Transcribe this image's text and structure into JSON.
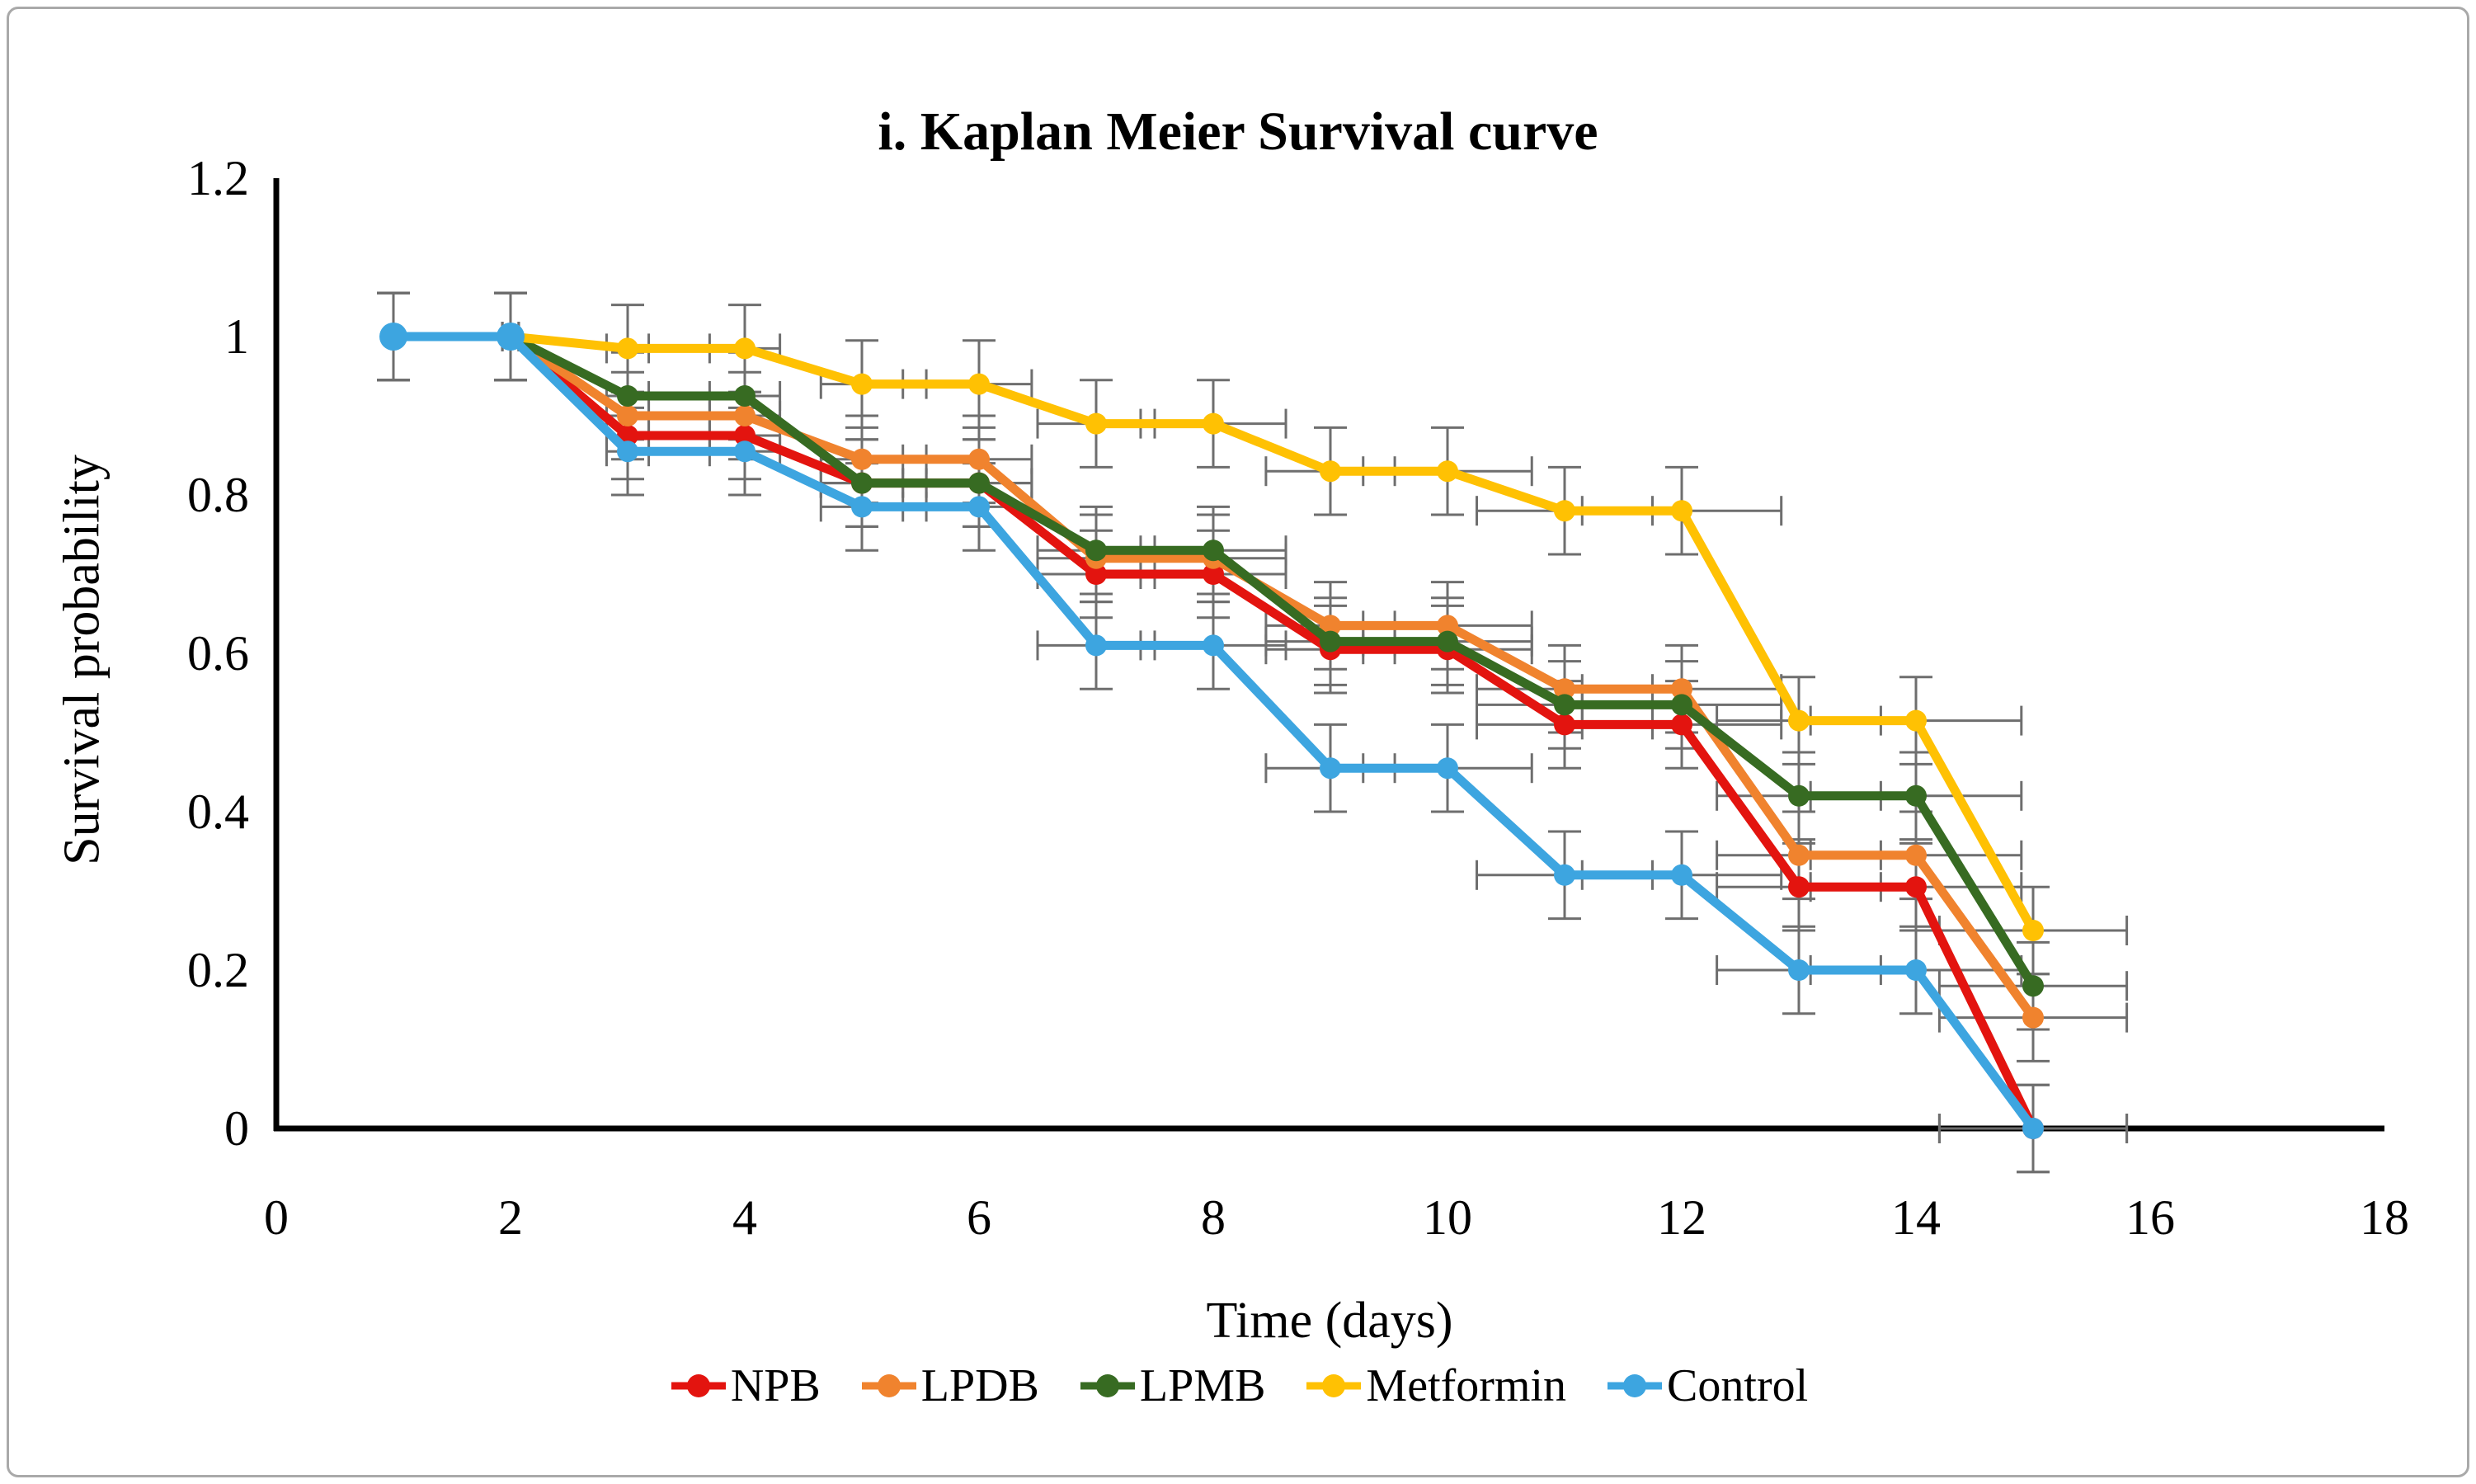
{
  "window": {
    "background": "#ffffff",
    "frame_border_color": "#a9a9a9"
  },
  "chart_data": {
    "type": "line",
    "title": "i. Kaplan Meier Survival curve",
    "xlabel": "Time (days)",
    "ylabel": "Survival probability",
    "x": [
      1,
      2,
      3,
      4,
      5,
      6,
      7,
      8,
      9,
      10,
      11,
      12,
      13,
      14,
      15
    ],
    "xlim": [
      0,
      18
    ],
    "ylim": [
      0,
      1.2
    ],
    "x_ticks": [
      "0",
      "2",
      "4",
      "6",
      "8",
      "10",
      "12",
      "14",
      "16",
      "18"
    ],
    "y_ticks": [
      "0",
      "0.2",
      "0.4",
      "0.6",
      "0.8",
      "1",
      "1.2"
    ],
    "grid": false,
    "legend_position": "bottom",
    "axis_color": "#000000",
    "error_bar_color": "#6e6e6e",
    "error_y": 0.055,
    "error_x_by_point": [
      0,
      0.07,
      0.18,
      0.3,
      0.35,
      0.45,
      0.5,
      0.62,
      0.55,
      0.72,
      0.75,
      0.85,
      0.7,
      0.9,
      0.8
    ],
    "series": [
      {
        "name": "NPB",
        "color": "#e3140f",
        "values": [
          1,
          1,
          0.875,
          0.875,
          0.815,
          0.815,
          0.7,
          0.7,
          0.605,
          0.605,
          0.51,
          0.51,
          0.305,
          0.305,
          0
        ]
      },
      {
        "name": "LPDB",
        "color": "#f0832e",
        "values": [
          1,
          1,
          0.9,
          0.9,
          0.845,
          0.845,
          0.72,
          0.72,
          0.635,
          0.635,
          0.555,
          0.555,
          0.345,
          0.345,
          0.14
        ]
      },
      {
        "name": "LPMB",
        "color": "#376b22",
        "values": [
          1,
          1,
          0.925,
          0.925,
          0.815,
          0.815,
          0.73,
          0.73,
          0.615,
          0.615,
          0.535,
          0.535,
          0.42,
          0.42,
          0.18
        ]
      },
      {
        "name": "Metformin",
        "color": "#ffc103",
        "values": [
          1,
          1,
          0.985,
          0.985,
          0.94,
          0.94,
          0.89,
          0.89,
          0.83,
          0.83,
          0.78,
          0.78,
          0.515,
          0.515,
          0.25
        ]
      },
      {
        "name": "Control",
        "color": "#3da5e0",
        "values": [
          1,
          1,
          0.855,
          0.855,
          0.785,
          0.785,
          0.61,
          0.61,
          0.455,
          0.455,
          0.32,
          0.32,
          0.2,
          0.2,
          0
        ]
      }
    ]
  }
}
